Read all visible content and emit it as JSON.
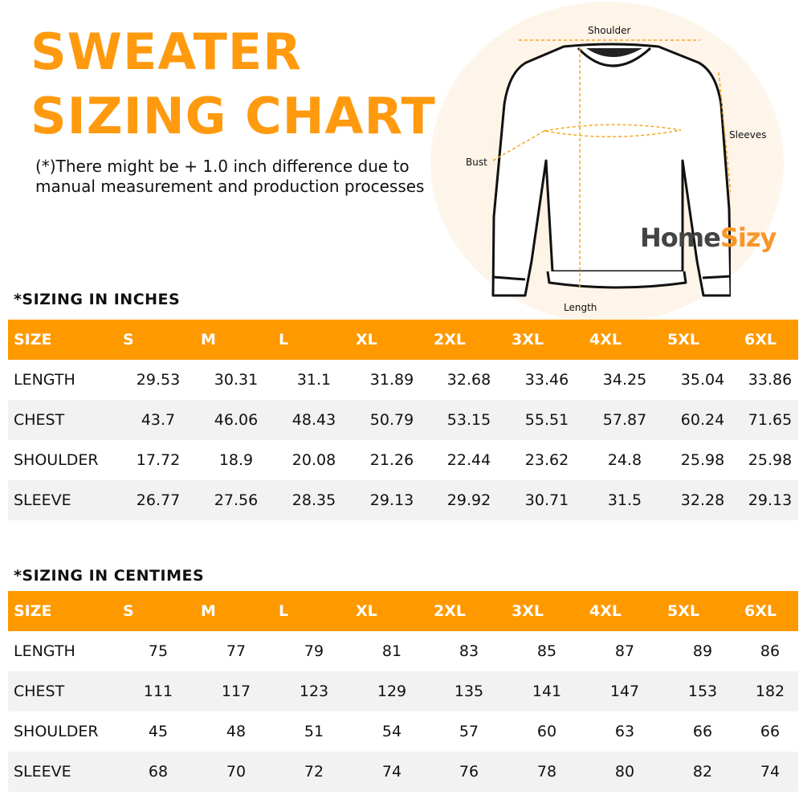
{
  "title_line1": "SWEATER",
  "title_line2": "SIZING CHART",
  "note_line1": "(*)There might be + 1.0 inch difference due to",
  "note_line2": "manual measurement and production processes",
  "diagram": {
    "shoulder": "Shoulder",
    "sleeves": "Sleeves",
    "bust": "Bust",
    "length": "Length"
  },
  "logo": {
    "part1": "Home",
    "part2": "Sizy"
  },
  "colors": {
    "accent": "#ff9900",
    "row_alt": "#f2f2f2"
  },
  "inches": {
    "title": "*SIZING IN INCHES",
    "headers": [
      "SIZE",
      "S",
      "M",
      "L",
      "XL",
      "2XL",
      "3XL",
      "4XL",
      "5XL",
      "6XL"
    ],
    "rows": [
      [
        "LENGTH",
        "29.53",
        "30.31",
        "31.1",
        "31.89",
        "32.68",
        "33.46",
        "34.25",
        "35.04",
        "33.86"
      ],
      [
        "CHEST",
        "43.7",
        "46.06",
        "48.43",
        "50.79",
        "53.15",
        "55.51",
        "57.87",
        "60.24",
        "71.65"
      ],
      [
        "SHOULDER",
        "17.72",
        "18.9",
        "20.08",
        "21.26",
        "22.44",
        "23.62",
        "24.8",
        "25.98",
        "25.98"
      ],
      [
        "SLEEVE",
        "26.77",
        "27.56",
        "28.35",
        "29.13",
        "29.92",
        "30.71",
        "31.5",
        "32.28",
        "29.13"
      ]
    ]
  },
  "centimes": {
    "title": "*SIZING IN CENTIMES",
    "headers": [
      "SIZE",
      "S",
      "M",
      "L",
      "XL",
      "2XL",
      "3XL",
      "4XL",
      "5XL",
      "6XL"
    ],
    "rows": [
      [
        "LENGTH",
        "75",
        "77",
        "79",
        "81",
        "83",
        "85",
        "87",
        "89",
        "86"
      ],
      [
        "CHEST",
        "111",
        "117",
        "123",
        "129",
        "135",
        "141",
        "147",
        "153",
        "182"
      ],
      [
        "SHOULDER",
        "45",
        "48",
        "51",
        "54",
        "57",
        "60",
        "63",
        "66",
        "66"
      ],
      [
        "SLEEVE",
        "68",
        "70",
        "72",
        "74",
        "76",
        "78",
        "80",
        "82",
        "74"
      ]
    ]
  }
}
